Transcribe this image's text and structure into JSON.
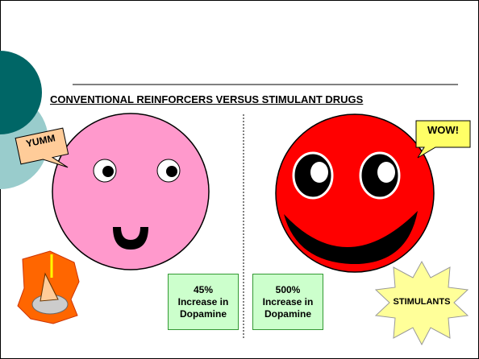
{
  "title": "CONVENTIONAL REINFORCERS VERSUS STIMULANT DRUGS",
  "left_callout": "YUMM",
  "right_callout": "WOW!",
  "left_box": {
    "lines": [
      "45%",
      "Increase in",
      "Dopamine"
    ]
  },
  "right_box": {
    "lines": [
      "500%",
      "Increase in",
      "Dopamine"
    ]
  },
  "star_label": "STIMULANTS"
}
